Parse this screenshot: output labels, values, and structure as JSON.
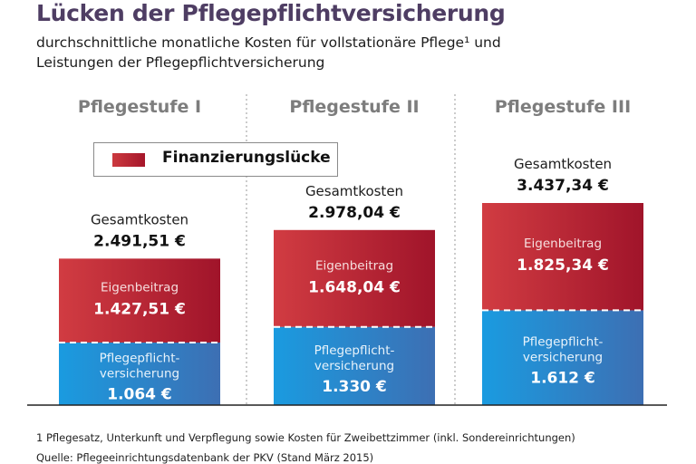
{
  "title": "Lücken der Pflegepflichtversicherung",
  "subtitle_lines": [
    "durchschnittliche monatliche Kosten für vollstationäre Pflege¹ und",
    "Leistungen der Pflegepflichtversicherung"
  ],
  "legend": {
    "label": "Finanzierungslücke",
    "color": "#b8232f"
  },
  "footnotes": [
    "1 Pflegesatz, Unterkunft und Verpflegung sowie Kosten für Zweibettzimmer (inkl. Sondereinrichtungen)",
    "Quelle: Pflegeeinrichtungsdatenbank der PKV (Stand März 2015)"
  ],
  "chart_data": {
    "type": "bar",
    "stacked": true,
    "title": "Lücken der Pflegepflichtversicherung",
    "xlabel": "",
    "ylabel": "",
    "ylim": [
      0,
      3437.34
    ],
    "grid": false,
    "legend_position": "top-left",
    "categories": [
      "Pflegestufe I",
      "Pflegestufe II",
      "Pflegestufe III"
    ],
    "total_label": "Gesamtkosten",
    "totals": [
      2491.51,
      2978.04,
      3437.34
    ],
    "total_texts": [
      "2.491,51 €",
      "2.978,04 €",
      "3.437,34 €"
    ],
    "series": [
      {
        "name": "Pflegepflichtversicherung",
        "label_lines": [
          "Pflegepflicht-",
          "versicherung"
        ],
        "values": [
          1064,
          1330,
          1612
        ],
        "value_texts": [
          "1.064 €",
          "1.330 €",
          "1.612 €"
        ],
        "color_start": "#1a9be0",
        "color_end": "#3d6fb3"
      },
      {
        "name": "Eigenbeitrag",
        "label_lines": [
          "Eigenbeitrag"
        ],
        "values": [
          1427.51,
          1648.04,
          1825.34
        ],
        "value_texts": [
          "1.427,51 €",
          "1.648,04 €",
          "1.825,34 €"
        ],
        "color_start": "#d13c42",
        "color_end": "#a0142a"
      }
    ]
  }
}
